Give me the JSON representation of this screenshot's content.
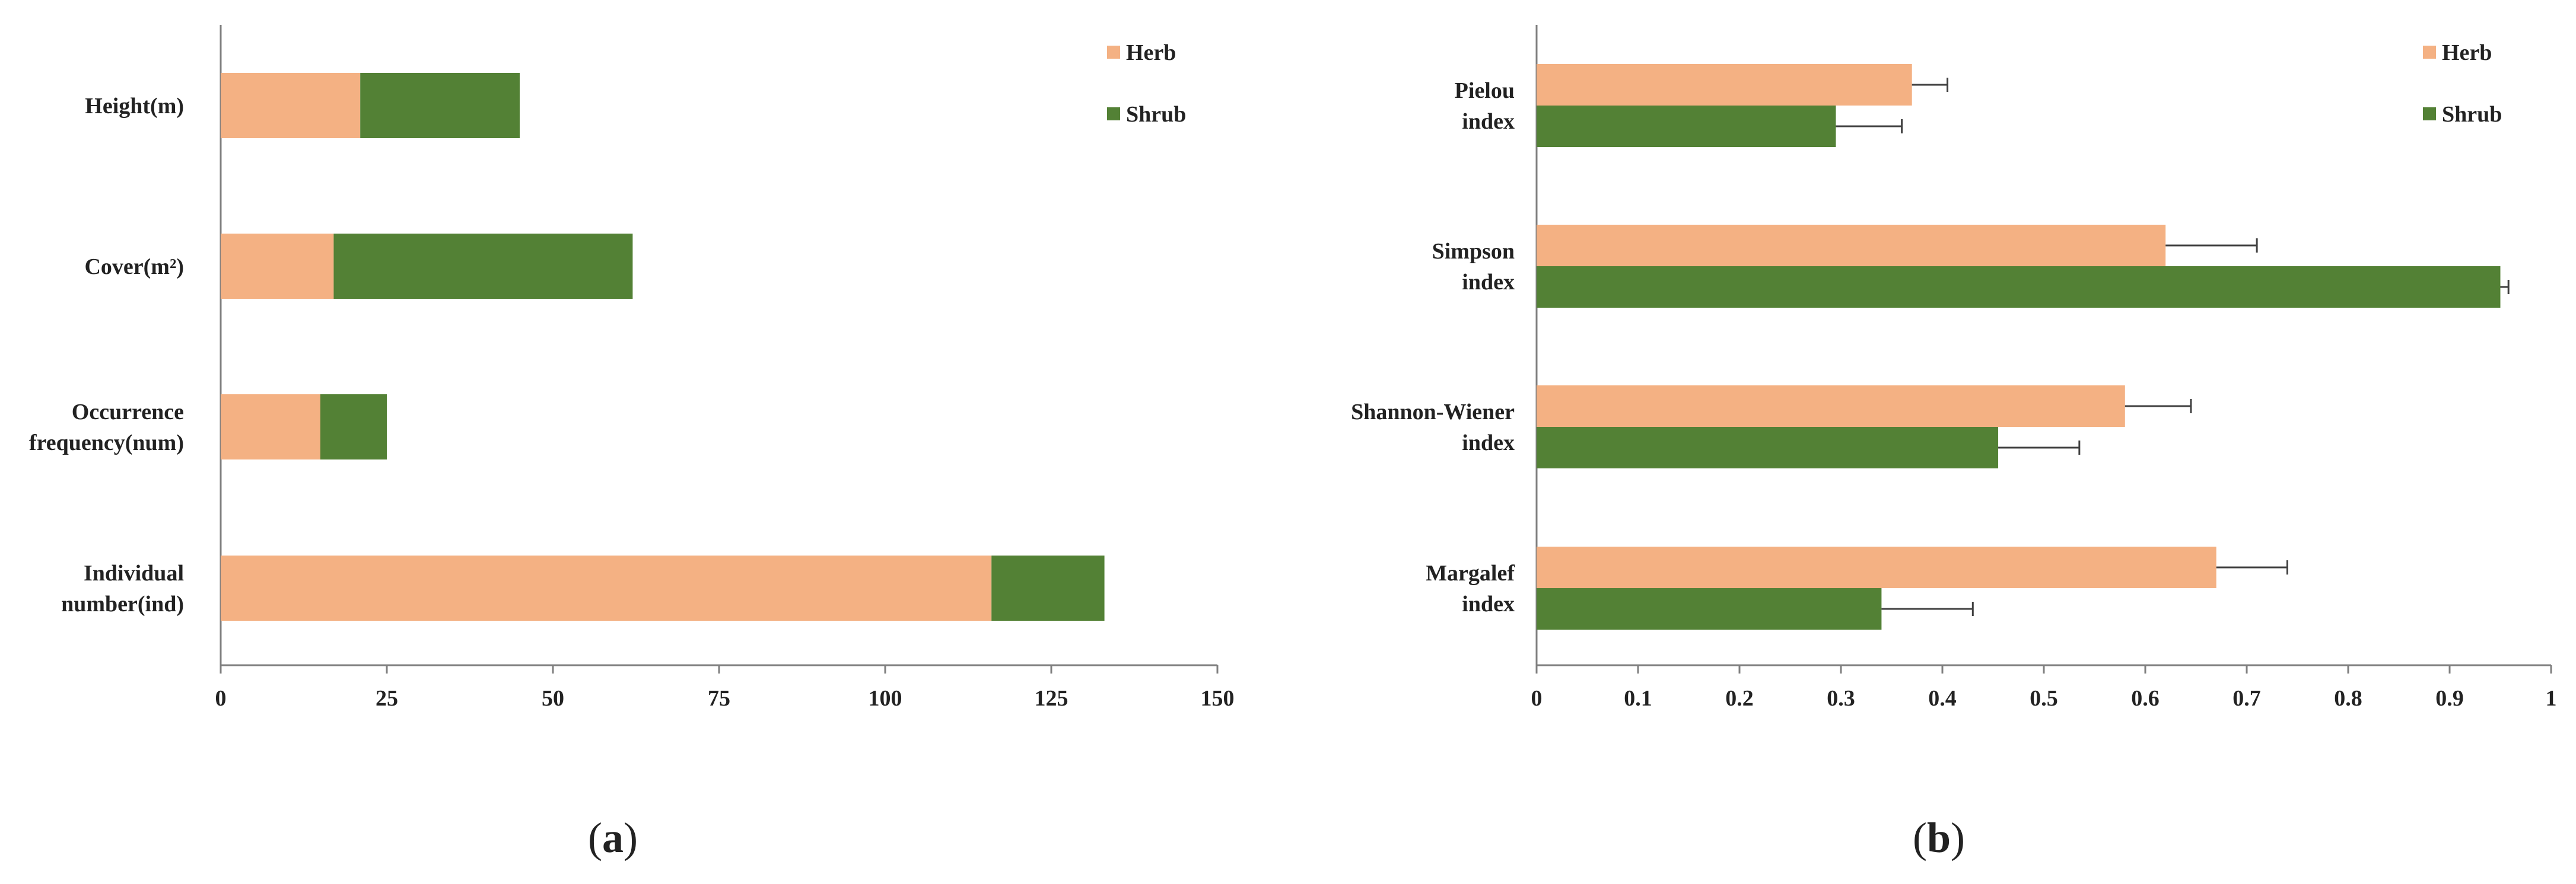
{
  "colors": {
    "herb": "#F4B183",
    "shrub": "#538135",
    "axis": "#7F7F7F",
    "errorbar": "#404040"
  },
  "panel_labels": {
    "a": "a",
    "b": "b"
  },
  "chart_data": [
    {
      "type": "bar",
      "orientation": "horizontal",
      "stacked": true,
      "panel": "a",
      "categories": [
        "Height(m)",
        "Cover(m²)",
        "Occurrence frequency(num)",
        "Individual number(ind)"
      ],
      "category_lines": [
        [
          "Height(m)"
        ],
        [
          "Cover(m²)"
        ],
        [
          "Occurrence",
          "frequency(num)"
        ],
        [
          "Individual",
          "number(ind)"
        ]
      ],
      "series": [
        {
          "name": "Herb",
          "values": [
            21,
            17,
            15,
            116
          ]
        },
        {
          "name": "Shrub",
          "values": [
            24,
            45,
            10,
            17
          ]
        }
      ],
      "xlim": [
        0,
        150
      ],
      "xticks": [
        "0",
        "25",
        "50",
        "75",
        "100",
        "125",
        "150"
      ],
      "grid": false,
      "legend": "top-right"
    },
    {
      "type": "bar",
      "orientation": "horizontal",
      "stacked": false,
      "panel": "b",
      "categories": [
        "Pielou index",
        "Simpson index",
        "Shannon-Wiener index",
        "Margalef index"
      ],
      "category_lines": [
        [
          "Pielou",
          "index"
        ],
        [
          "Simpson",
          "index"
        ],
        [
          "Shannon-Wiener",
          "index"
        ],
        [
          "Margalef",
          "index"
        ]
      ],
      "series": [
        {
          "name": "Herb",
          "values": [
            0.37,
            0.62,
            0.58,
            0.67
          ],
          "errors": [
            0.035,
            0.09,
            0.065,
            0.07
          ]
        },
        {
          "name": "Shrub",
          "values": [
            0.295,
            0.95,
            0.455,
            0.34
          ],
          "errors": [
            0.065,
            0.008,
            0.08,
            0.09
          ]
        }
      ],
      "xlim": [
        0,
        1
      ],
      "xticks": [
        "0",
        "0.1",
        "0.2",
        "0.3",
        "0.4",
        "0.5",
        "0.6",
        "0.7",
        "0.8",
        "0.9",
        "1"
      ],
      "grid": false,
      "legend": "top-right"
    }
  ]
}
